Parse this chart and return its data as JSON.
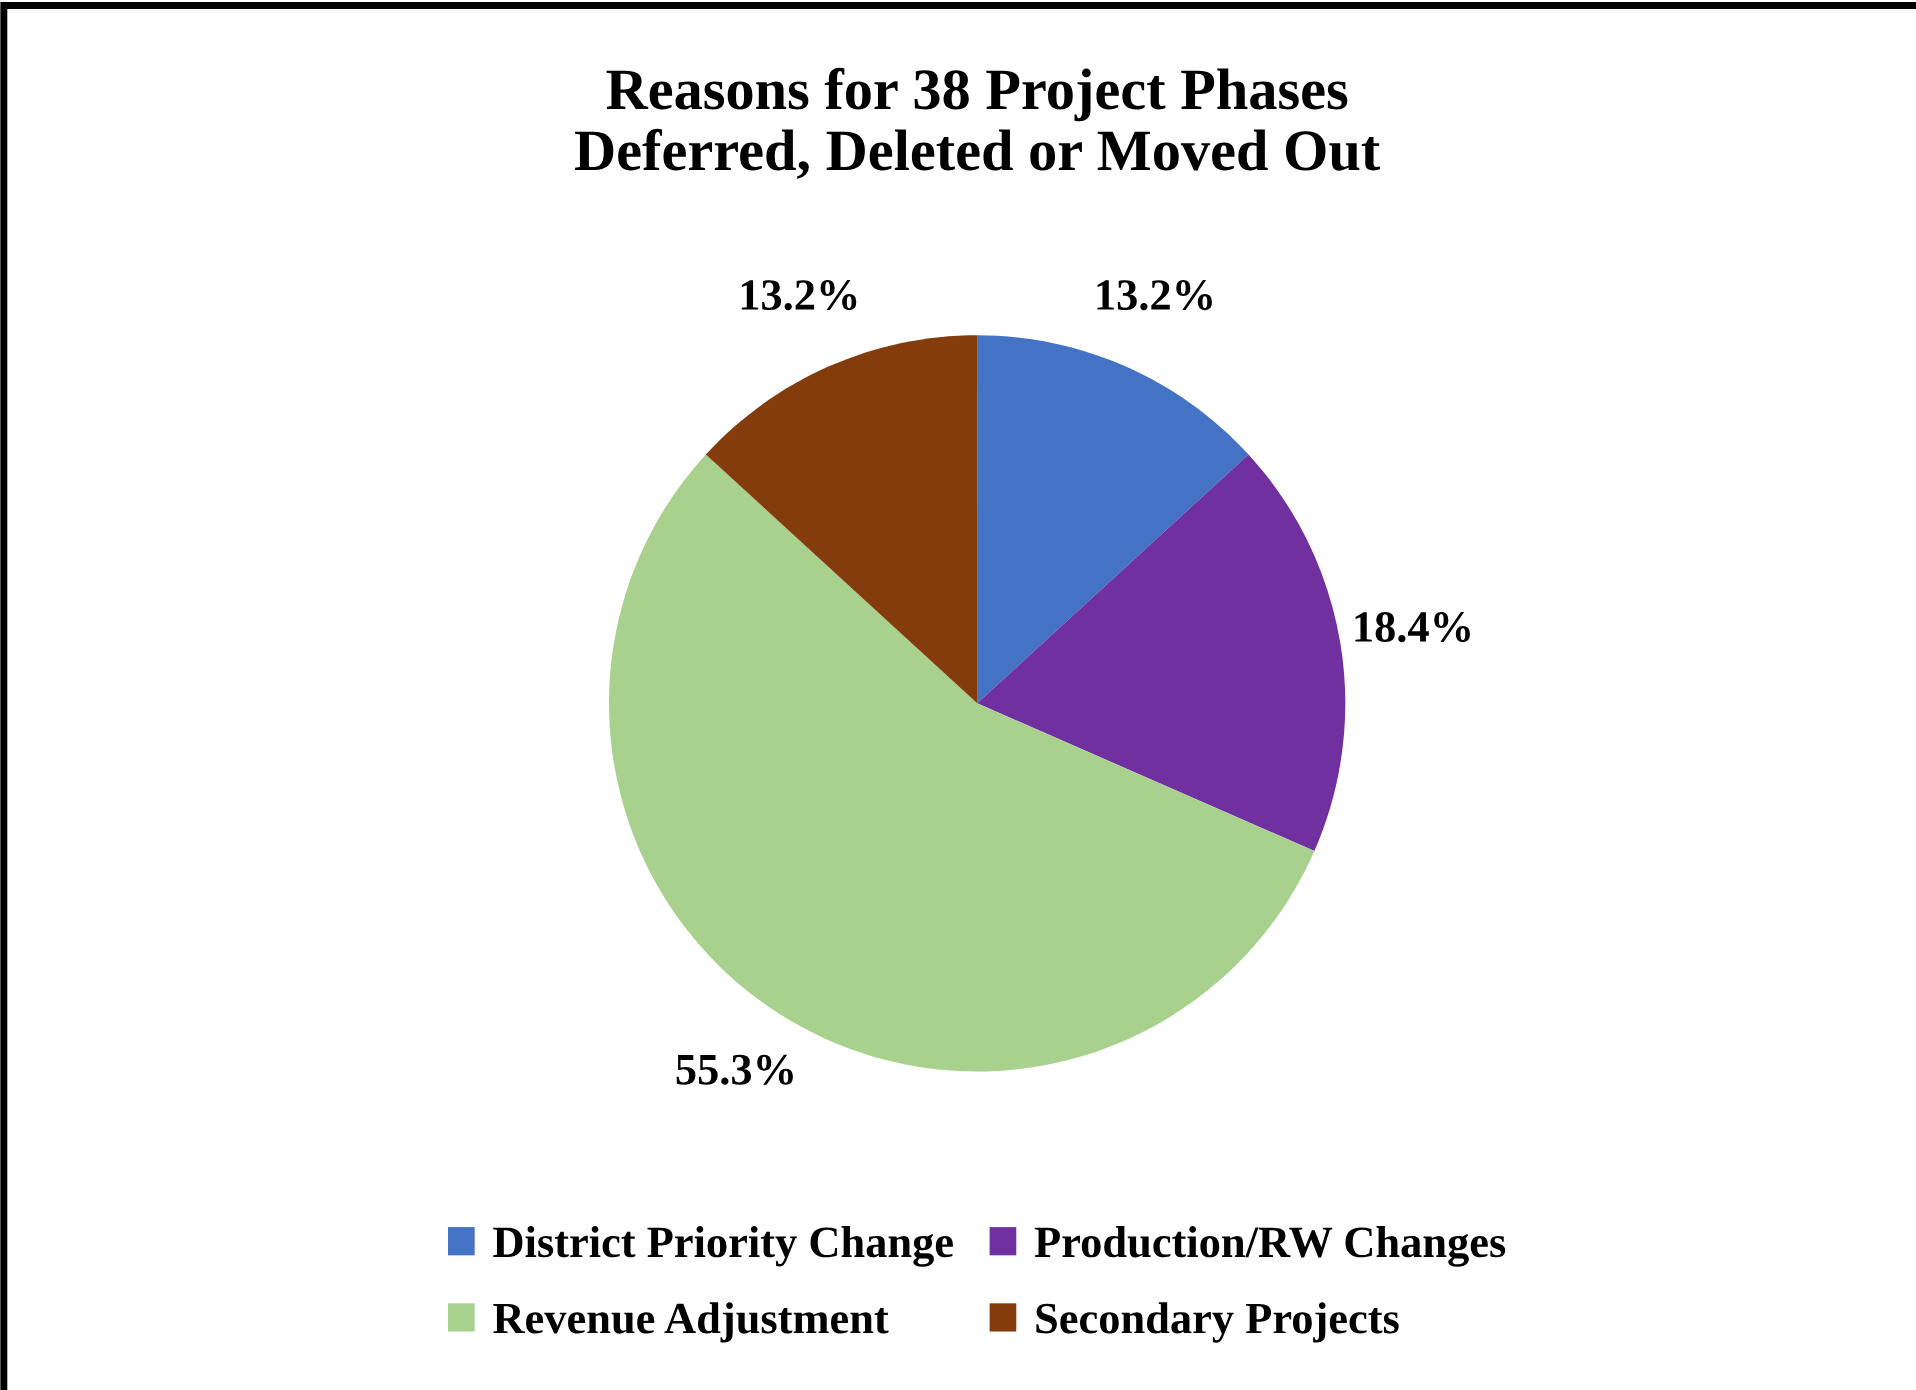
{
  "chart_data": {
    "type": "pie",
    "title": "Reasons for 38 Project Phases\nDeferred, Deleted or Moved Out",
    "categories": [
      "District Priority Change",
      "Production/RW Changes",
      "Revenue Adjustment",
      "Secondary Projects"
    ],
    "values": [
      13.2,
      18.4,
      55.3,
      13.2
    ],
    "value_labels": [
      "13.2%",
      "18.4%",
      "55.3%",
      "13.2%"
    ],
    "colors": [
      "#4472c4",
      "#7030a0",
      "#a9d18e",
      "#843c0c"
    ],
    "legend": "bottom"
  }
}
